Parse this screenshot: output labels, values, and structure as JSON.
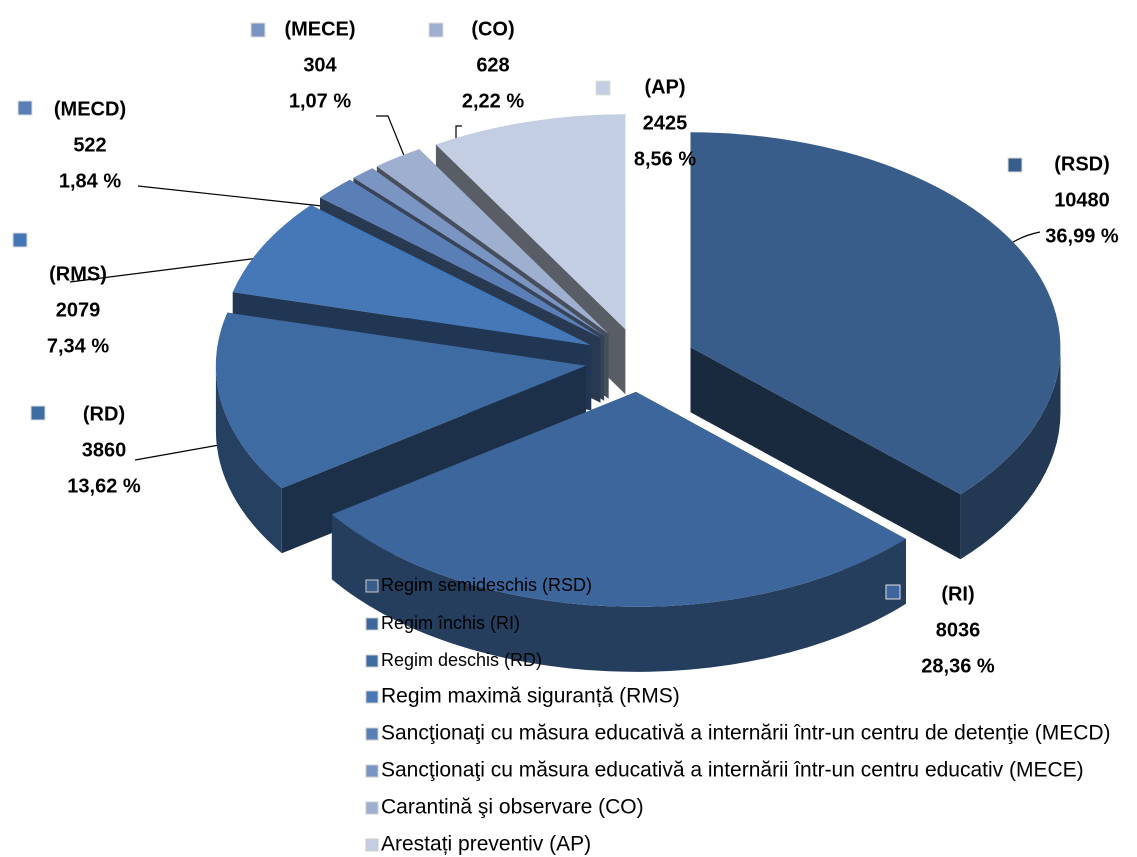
{
  "chart_data": {
    "type": "pie",
    "categories": [
      "Regim semideschis (RSD)",
      "Regim închis (RI)",
      "Regim deschis (RD)",
      "Regim maximă siguranță (RMS)",
      "Sancţionaţi cu măsura educativă a internării într-un centru de detenţie (MECD)",
      "Sancţionaţi cu măsura educativă a internării într-un centru educativ (MECE)",
      "Carantină şi observare (CO)",
      "Arestați preventiv (AP)"
    ],
    "labels": [
      "(RSD)",
      "(RI)",
      "(RD)",
      "(RMS)",
      "(MECD)",
      "(MECE)",
      "(CO)",
      "(AP)"
    ],
    "values": [
      10480,
      8036,
      3860,
      2079,
      522,
      304,
      628,
      2425
    ],
    "percent_labels": [
      "36,99 %",
      "28,36 %",
      "13,62 %",
      "7,34 %",
      "1,84 %",
      "1,07 %",
      "2,22 %",
      "8,56 %"
    ],
    "colors": [
      "#395d8a",
      "#3d679c",
      "#3f6ba3",
      "#4677b6",
      "#5a7fb7",
      "#7a95c2",
      "#9eafcf",
      "#c4cee2"
    ],
    "legend": "bottom-left"
  }
}
